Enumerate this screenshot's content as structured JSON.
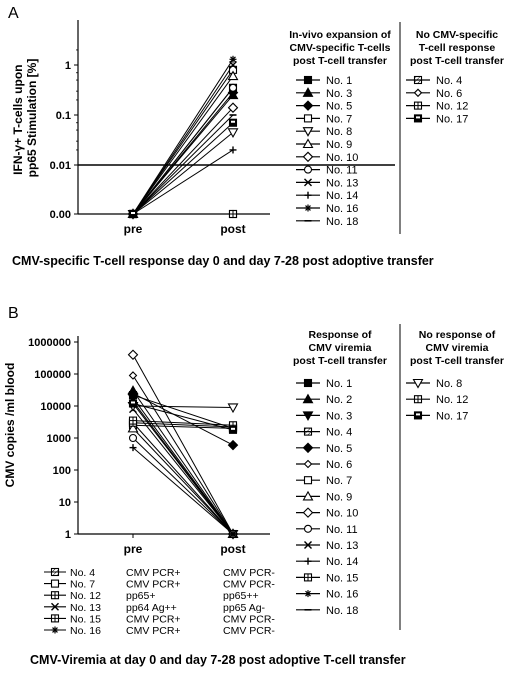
{
  "chart_data": [
    {
      "panel_label": "A",
      "type": "line",
      "ylabel": "IFN-γ+ T-cells upon pp65 Stimulation [%]",
      "categories": [
        "pre",
        "post"
      ],
      "yscale": "log",
      "ylim": [
        0,
        2
      ],
      "y_ticks": [
        "0.00",
        "0.01",
        "0.1",
        "1"
      ],
      "threshold": 0.01,
      "series": [
        {
          "name": "No. 1",
          "marker": "square-filled",
          "values": [
            0,
            0.35
          ]
        },
        {
          "name": "No. 3",
          "marker": "triangle-filled",
          "values": [
            0,
            0.25
          ]
        },
        {
          "name": "No. 5",
          "marker": "diamond-filled",
          "values": [
            0,
            0.28
          ]
        },
        {
          "name": "No. 7",
          "marker": "square-open",
          "values": [
            0,
            0.8
          ]
        },
        {
          "name": "No. 8",
          "marker": "triangle-down-open",
          "values": [
            0,
            0.045
          ]
        },
        {
          "name": "No. 9",
          "marker": "triangle-open",
          "values": [
            0,
            0.6
          ]
        },
        {
          "name": "No. 10",
          "marker": "diamond-open",
          "values": [
            0,
            0.14
          ]
        },
        {
          "name": "No. 11",
          "marker": "circle-open",
          "values": [
            0,
            0.35
          ]
        },
        {
          "name": "No. 13",
          "marker": "x",
          "values": [
            0,
            1.0
          ]
        },
        {
          "name": "No. 14",
          "marker": "plus",
          "values": [
            0,
            0.02
          ]
        },
        {
          "name": "No. 16",
          "marker": "star",
          "values": [
            0,
            1.3
          ]
        },
        {
          "name": "No. 18",
          "marker": "dash",
          "values": [
            0,
            0.1
          ]
        },
        {
          "name": "No. 4",
          "marker": "square-hatched",
          "values": [
            0,
            0
          ]
        },
        {
          "name": "No. 6",
          "marker": "diamond-small",
          "values": [
            0,
            0
          ]
        },
        {
          "name": "No. 12",
          "marker": "square-cross",
          "values": [
            0,
            0
          ]
        },
        {
          "name": "No. 17",
          "marker": "square-half",
          "values": [
            0,
            0.07
          ]
        }
      ],
      "legend": {
        "col1_title": [
          "In-vivo expansion of",
          "CMV-specific T-cells",
          "post T-cell transfer"
        ],
        "col1": [
          {
            "label": "No. 1",
            "marker": "square-filled"
          },
          {
            "label": "No. 3",
            "marker": "triangle-filled"
          },
          {
            "label": "No. 5",
            "marker": "diamond-filled"
          },
          {
            "label": "No. 7",
            "marker": "square-open"
          },
          {
            "label": "No. 8",
            "marker": "triangle-down-open"
          },
          {
            "label": "No. 9",
            "marker": "triangle-open"
          },
          {
            "label": "No. 10",
            "marker": "diamond-open"
          },
          {
            "label": "No. 11",
            "marker": "circle-open"
          },
          {
            "label": "No. 13",
            "marker": "x"
          },
          {
            "label": "No. 14",
            "marker": "plus"
          },
          {
            "label": "No. 16",
            "marker": "star"
          },
          {
            "label": "No. 18",
            "marker": "dash"
          }
        ],
        "col2_title": [
          "No CMV-specific",
          "T-cell response",
          "post T-cell transfer"
        ],
        "col2": [
          {
            "label": "No. 4",
            "marker": "square-hatched"
          },
          {
            "label": "No. 6",
            "marker": "diamond-small"
          },
          {
            "label": "No. 12",
            "marker": "square-cross"
          },
          {
            "label": "No. 17",
            "marker": "square-half"
          }
        ]
      },
      "caption": "CMV-specific T-cell response day 0 and day 7-28 post adoptive transfer"
    },
    {
      "panel_label": "B",
      "type": "line",
      "ylabel": "CMV copies /ml blood",
      "categories": [
        "pre",
        "post"
      ],
      "yscale": "log",
      "ylim": [
        1,
        1000000
      ],
      "y_ticks": [
        "1",
        "10",
        "100",
        "1000",
        "10000",
        "100000",
        "1000000"
      ],
      "series": [
        {
          "name": "No. 1",
          "marker": "square-filled",
          "values": [
            3000,
            1
          ]
        },
        {
          "name": "No. 2",
          "marker": "triangle-filled",
          "values": [
            30000,
            1
          ]
        },
        {
          "name": "No. 3",
          "marker": "triangle-down-filled",
          "values": [
            18000,
            1
          ]
        },
        {
          "name": "No. 4",
          "marker": "square-hatched",
          "values": [
            22000,
            2000
          ]
        },
        {
          "name": "No. 5",
          "marker": "diamond-filled",
          "values": [
            25000,
            600
          ]
        },
        {
          "name": "No. 6",
          "marker": "diamond-small",
          "values": [
            90000,
            1
          ]
        },
        {
          "name": "No. 7",
          "marker": "square-open",
          "values": [
            2500,
            2000
          ]
        },
        {
          "name": "No. 9",
          "marker": "triangle-open",
          "values": [
            2000,
            1
          ]
        },
        {
          "name": "No. 10",
          "marker": "diamond-open",
          "values": [
            400000,
            1
          ]
        },
        {
          "name": "No. 11",
          "marker": "circle-open",
          "values": [
            1000,
            1
          ]
        },
        {
          "name": "No. 13",
          "marker": "x",
          "values": [
            8000,
            1
          ]
        },
        {
          "name": "No. 14",
          "marker": "plus",
          "values": [
            500,
            1
          ]
        },
        {
          "name": "No. 15",
          "marker": "square-cross",
          "values": [
            3000,
            2200
          ]
        },
        {
          "name": "No. 16",
          "marker": "star",
          "values": [
            12000,
            1
          ]
        },
        {
          "name": "No. 18",
          "marker": "dash",
          "values": [
            14000,
            1
          ]
        },
        {
          "name": "No. 8",
          "marker": "triangle-down-open",
          "values": [
            10000,
            9000
          ]
        },
        {
          "name": "No. 12",
          "marker": "square-cross",
          "values": [
            3500,
            2500
          ]
        },
        {
          "name": "No. 17",
          "marker": "square-half",
          "values": [
            12000,
            1800
          ]
        }
      ],
      "legend": {
        "col1_title": [
          "Response of",
          "CMV viremia",
          "post T-cell transfer"
        ],
        "col1": [
          {
            "label": "No. 1",
            "marker": "square-filled"
          },
          {
            "label": "No. 2",
            "marker": "triangle-filled"
          },
          {
            "label": "No. 3",
            "marker": "triangle-down-filled"
          },
          {
            "label": "No. 4",
            "marker": "square-hatched"
          },
          {
            "label": "No. 5",
            "marker": "diamond-filled"
          },
          {
            "label": "No. 6",
            "marker": "diamond-small"
          },
          {
            "label": "No. 7",
            "marker": "square-open"
          },
          {
            "label": "No. 9",
            "marker": "triangle-open"
          },
          {
            "label": "No. 10",
            "marker": "diamond-open"
          },
          {
            "label": "No. 11",
            "marker": "circle-open"
          },
          {
            "label": "No. 13",
            "marker": "x"
          },
          {
            "label": "No. 14",
            "marker": "plus"
          },
          {
            "label": "No. 15",
            "marker": "square-cross"
          },
          {
            "label": "No. 16",
            "marker": "star"
          },
          {
            "label": "No. 18",
            "marker": "dash"
          }
        ],
        "col2_title": [
          "No response of",
          "CMV viremia",
          "post T-cell transfer"
        ],
        "col2": [
          {
            "label": "No. 8",
            "marker": "triangle-down-open"
          },
          {
            "label": "No. 12",
            "marker": "square-cross"
          },
          {
            "label": "No. 17",
            "marker": "square-half"
          }
        ]
      },
      "status_table": [
        {
          "label": "No. 4",
          "marker": "square-hatched",
          "pre": "CMV PCR+",
          "post": "CMV PCR-"
        },
        {
          "label": "No. 7",
          "marker": "square-open",
          "pre": "CMV PCR+",
          "post": "CMV PCR-"
        },
        {
          "label": "No. 12",
          "marker": "square-cross",
          "pre": "pp65+",
          "post": "pp65++"
        },
        {
          "label": "No. 13",
          "marker": "x",
          "pre": "pp64 Ag++",
          "post": "pp65 Ag-"
        },
        {
          "label": "No. 15",
          "marker": "square-cross",
          "pre": "CMV PCR+",
          "post": "CMV PCR-"
        },
        {
          "label": "No. 16",
          "marker": "star",
          "pre": "CMV PCR+",
          "post": "CMV PCR-"
        }
      ],
      "caption": "CMV-Viremia at day 0 and day 7-28 post adoptive T-cell transfer"
    }
  ]
}
